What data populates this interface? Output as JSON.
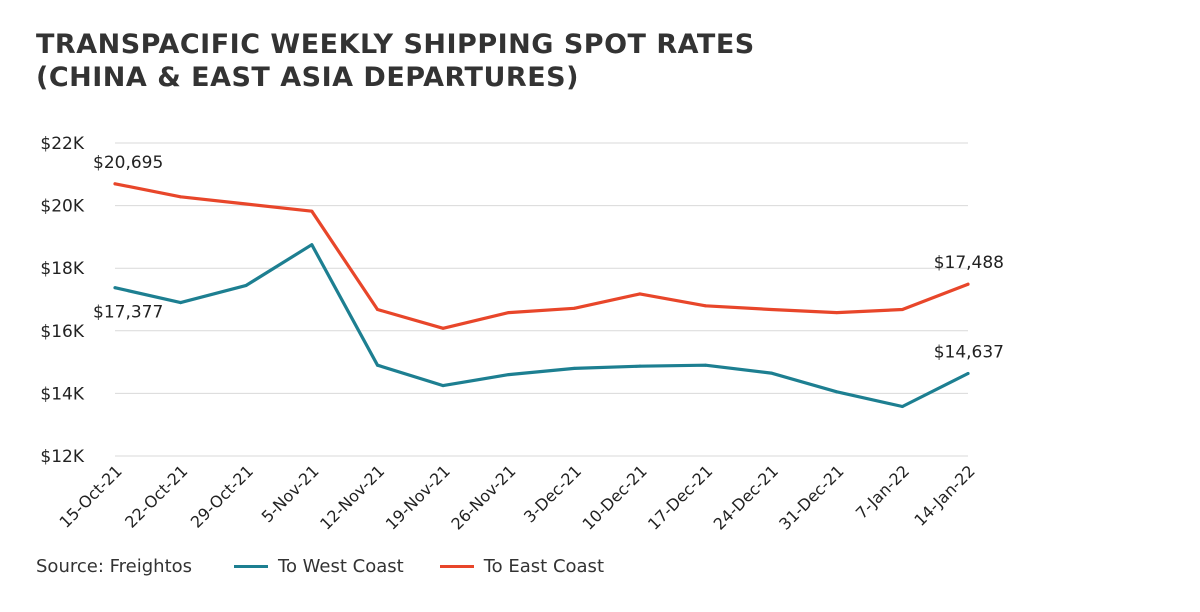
{
  "title": {
    "line1": "TRANSPACIFIC WEEKLY SHIPPING SPOT RATES",
    "line2": "(CHINA & EAST ASIA DEPARTURES)"
  },
  "source": "Source: Freightos",
  "colors": {
    "west": "#1d7f91",
    "east": "#e8462a",
    "grid": "#d9d9d9"
  },
  "chart_data": {
    "type": "line",
    "title": "TRANSPACIFIC WEEKLY SHIPPING SPOT RATES (CHINA & EAST ASIA DEPARTURES)",
    "xlabel": "",
    "ylabel": "",
    "categories": [
      "15-Oct-21",
      "22-Oct-21",
      "29-Oct-21",
      "5-Nov-21",
      "12-Nov-21",
      "19-Nov-21",
      "26-Nov-21",
      "3-Dec-21",
      "10-Dec-21",
      "17-Dec-21",
      "24-Dec-21",
      "31-Dec-21",
      "7-Jan-22",
      "14-Jan-22"
    ],
    "ylim": [
      12000,
      22000
    ],
    "yticks": [
      12000,
      14000,
      16000,
      18000,
      20000,
      22000
    ],
    "ytick_labels": [
      "$12K",
      "$14K",
      "$16K",
      "$18K",
      "$20K",
      "$22K"
    ],
    "grid": true,
    "legend_position": "bottom",
    "series": [
      {
        "name": "To West Coast",
        "color": "#1d7f91",
        "values": [
          17377,
          16900,
          17450,
          18750,
          14900,
          14250,
          14600,
          14800,
          14870,
          14900,
          14650,
          14050,
          13580,
          14637
        ]
      },
      {
        "name": "To East Coast",
        "color": "#e8462a",
        "values": [
          20695,
          20280,
          20050,
          19820,
          16680,
          16080,
          16580,
          16720,
          17180,
          16800,
          16680,
          16580,
          16680,
          17488
        ]
      }
    ],
    "annotations": [
      {
        "series": 1,
        "index": 0,
        "text": "$20,695"
      },
      {
        "series": 0,
        "index": 0,
        "text": "$17,377"
      },
      {
        "series": 1,
        "index": 13,
        "text": "$17,488"
      },
      {
        "series": 0,
        "index": 13,
        "text": "$14,637"
      }
    ]
  }
}
